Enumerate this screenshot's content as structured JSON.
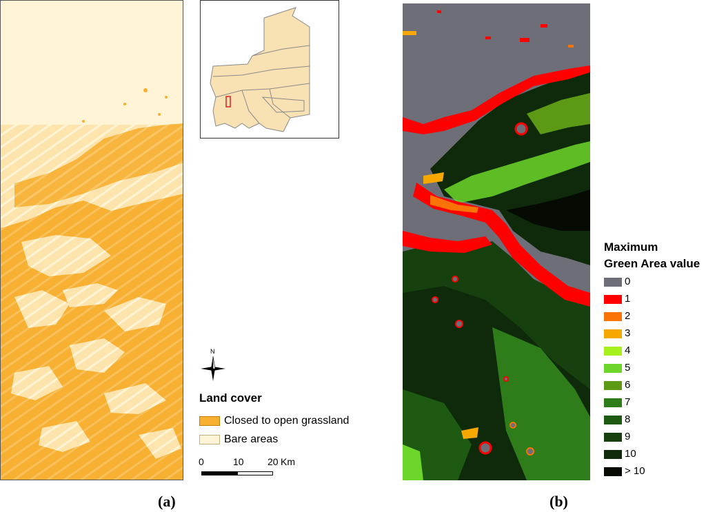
{
  "panel_a": {
    "caption": "(a)",
    "legend": {
      "title": "Land cover",
      "items": [
        {
          "label": "Closed to open grassland",
          "color": "#F7B032"
        },
        {
          "label": "Bare areas",
          "color": "#FFF5D6"
        }
      ]
    },
    "scale_bar": {
      "ticks": [
        "0",
        "10",
        "20"
      ],
      "unit": "Km"
    },
    "north_arrow": {
      "label": "N"
    }
  },
  "panel_b": {
    "caption": "(b)",
    "legend": {
      "title_line1": "Maximum",
      "title_line2": "Green Area value",
      "items": [
        {
          "label": "0",
          "color": "#6E6E78"
        },
        {
          "label": "1",
          "color": "#FF0000"
        },
        {
          "label": "2",
          "color": "#F97306"
        },
        {
          "label": "3",
          "color": "#F7A800"
        },
        {
          "label": "4",
          "color": "#A6F01E"
        },
        {
          "label": "5",
          "color": "#6CD62A"
        },
        {
          "label": "6",
          "color": "#5C9A16"
        },
        {
          "label": "7",
          "color": "#2E7D1A"
        },
        {
          "label": "8",
          "color": "#1F5A12"
        },
        {
          "label": "9",
          "color": "#16400E"
        },
        {
          "label": "10",
          "color": "#0E2A0A"
        },
        {
          "label": "> 10",
          "color": "#050A03"
        }
      ]
    }
  }
}
